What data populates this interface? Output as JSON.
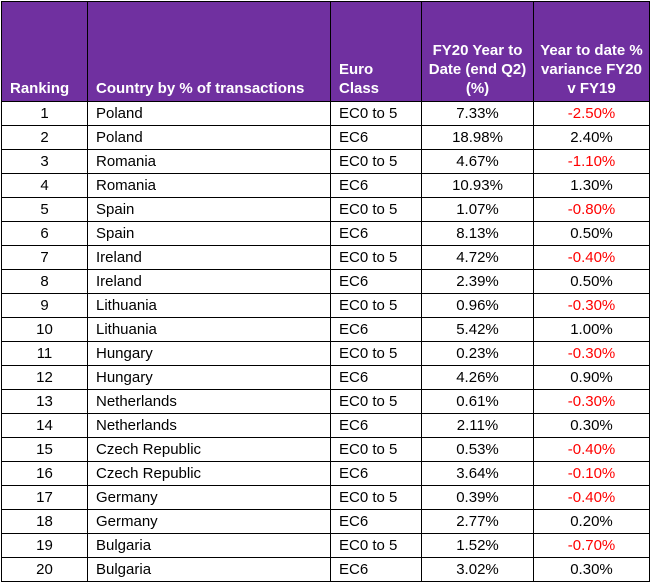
{
  "headers": {
    "ranking": "Ranking",
    "country": "Country by % of transactions",
    "euro_class": "Euro Class",
    "ytd": "FY20 Year to Date (end Q2) (%)",
    "variance": "Year to date % variance FY20 v FY19"
  },
  "rows": [
    {
      "rank": "1",
      "country": "Poland",
      "euro_class": "EC0 to 5",
      "ytd": "7.33%",
      "variance": "-2.50%"
    },
    {
      "rank": "2",
      "country": "Poland",
      "euro_class": "EC6",
      "ytd": "18.98%",
      "variance": "2.40%"
    },
    {
      "rank": "3",
      "country": "Romania",
      "euro_class": "EC0 to 5",
      "ytd": "4.67%",
      "variance": "-1.10%"
    },
    {
      "rank": "4",
      "country": "Romania",
      "euro_class": "EC6",
      "ytd": "10.93%",
      "variance": "1.30%"
    },
    {
      "rank": "5",
      "country": "Spain",
      "euro_class": "EC0 to 5",
      "ytd": "1.07%",
      "variance": "-0.80%"
    },
    {
      "rank": "6",
      "country": "Spain",
      "euro_class": "EC6",
      "ytd": "8.13%",
      "variance": "0.50%"
    },
    {
      "rank": "7",
      "country": "Ireland",
      "euro_class": "EC0 to 5",
      "ytd": "4.72%",
      "variance": "-0.40%"
    },
    {
      "rank": "8",
      "country": "Ireland",
      "euro_class": "EC6",
      "ytd": "2.39%",
      "variance": "0.50%"
    },
    {
      "rank": "9",
      "country": "Lithuania",
      "euro_class": "EC0 to 5",
      "ytd": "0.96%",
      "variance": "-0.30%"
    },
    {
      "rank": "10",
      "country": "Lithuania",
      "euro_class": "EC6",
      "ytd": "5.42%",
      "variance": "1.00%"
    },
    {
      "rank": "11",
      "country": "Hungary",
      "euro_class": "EC0 to 5",
      "ytd": "0.23%",
      "variance": "-0.30%"
    },
    {
      "rank": "12",
      "country": "Hungary",
      "euro_class": "EC6",
      "ytd": "4.26%",
      "variance": "0.90%"
    },
    {
      "rank": "13",
      "country": "Netherlands",
      "euro_class": "EC0 to 5",
      "ytd": "0.61%",
      "variance": "-0.30%"
    },
    {
      "rank": "14",
      "country": "Netherlands",
      "euro_class": "EC6",
      "ytd": "2.11%",
      "variance": "0.30%"
    },
    {
      "rank": "15",
      "country": "Czech Republic",
      "euro_class": "EC0 to 5",
      "ytd": "0.53%",
      "variance": "-0.40%"
    },
    {
      "rank": "16",
      "country": "Czech Republic",
      "euro_class": "EC6",
      "ytd": "3.64%",
      "variance": "-0.10%"
    },
    {
      "rank": "17",
      "country": "Germany",
      "euro_class": "EC0 to 5",
      "ytd": "0.39%",
      "variance": "-0.40%"
    },
    {
      "rank": "18",
      "country": "Germany",
      "euro_class": "EC6",
      "ytd": "2.77%",
      "variance": "0.20%"
    },
    {
      "rank": "19",
      "country": "Bulgaria",
      "euro_class": "EC0 to 5",
      "ytd": "1.52%",
      "variance": "-0.70%"
    },
    {
      "rank": "20",
      "country": "Bulgaria",
      "euro_class": "EC6",
      "ytd": "3.02%",
      "variance": "0.30%"
    }
  ],
  "colors": {
    "header_bg": "#7030a0",
    "header_text": "#ffffff",
    "negative": "#ff0000"
  }
}
